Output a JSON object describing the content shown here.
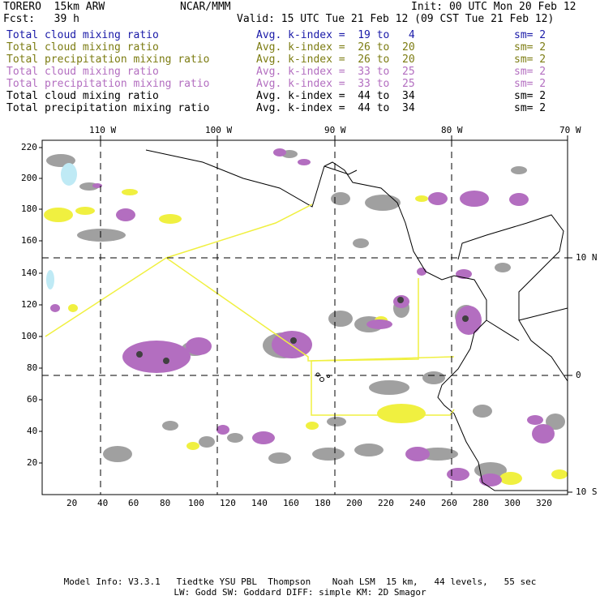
{
  "header": {
    "model": "TORERO  15km ARW",
    "org": "NCAR/MMM",
    "init": "Init: 00 UTC Mon 20 Feb 12",
    "fcst": "Fcst:   39 h",
    "valid": "Valid: 15 UTC Tue 21 Feb 12 (09 CST Tue 21 Feb 12)"
  },
  "legend": [
    {
      "field": "Total cloud mixing ratio",
      "index": "Avg. k-index =  19 to   4",
      "sm": "sm= 2",
      "color": "#1a1aa8"
    },
    {
      "field": "Total cloud mixing ratio",
      "index": "Avg. k-index =  26 to  20",
      "sm": "sm= 2",
      "color": "#7c7c12"
    },
    {
      "field": "Total precipitation mixing ratio",
      "index": "Avg. k-index =  26 to  20",
      "sm": "sm= 2",
      "color": "#7c7c12"
    },
    {
      "field": "Total cloud mixing ratio",
      "index": "Avg. k-index =  33 to  25",
      "sm": "sm= 2",
      "color": "#b36ec0"
    },
    {
      "field": "Total precipitation mixing ratio",
      "index": "Avg. k-index =  33 to  25",
      "sm": "sm= 2",
      "color": "#b36ec0"
    },
    {
      "field": "Total cloud mixing ratio",
      "index": "Avg. k-index =  44 to  34",
      "sm": "sm= 2",
      "color": "#000000"
    },
    {
      "field": "Total precipitation mixing ratio",
      "index": "Avg. k-index =  44 to  34",
      "sm": "sm= 2",
      "color": "#000000"
    }
  ],
  "axes": {
    "top_lon": [
      "110 W",
      "100 W",
      "90 W",
      "80 W",
      "70 W"
    ],
    "right_lat": [
      "10 N",
      "0",
      "10 S"
    ],
    "y_ticks": [
      "220",
      "200",
      "180",
      "160",
      "140",
      "120",
      "100",
      "80",
      "60",
      "40",
      "20"
    ],
    "x_ticks": [
      "20",
      "40",
      "60",
      "80",
      "100",
      "120",
      "140",
      "160",
      "180",
      "200",
      "220",
      "240",
      "260",
      "280",
      "300",
      "320"
    ]
  },
  "footer": {
    "line1": "Model Info: V3.3.1   Tiedtke YSU PBL  Thompson    Noah LSM  15 km,   44 levels,   55 sec",
    "line2": "LW: Godd SW: Goddard DIFF: simple KM: 2D Smagor"
  },
  "colors": {
    "gray": "#a0a0a0",
    "yellow": "#f0f040",
    "purple": "#b36ec0",
    "dark": "#404040",
    "lightblue": "#bfeaf5"
  }
}
